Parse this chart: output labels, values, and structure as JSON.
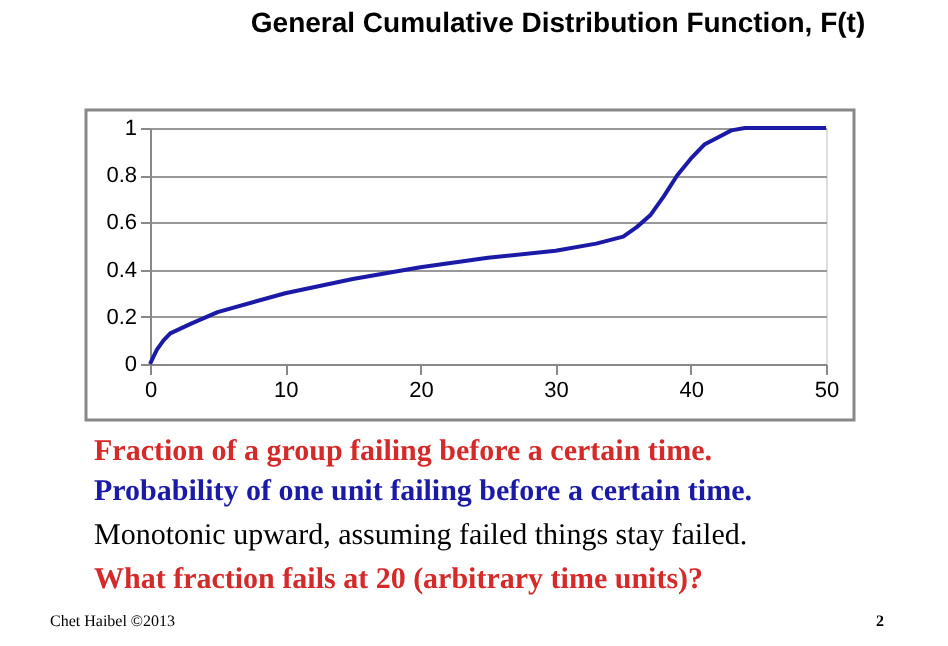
{
  "chart_data": {
    "type": "line",
    "title": "General Cumulative Distribution Function, F(t)",
    "x": [
      0,
      0.5,
      1,
      1.5,
      3,
      5,
      10,
      15,
      20,
      25,
      30,
      33,
      35,
      36,
      37,
      38,
      39,
      40,
      41,
      42,
      43,
      44,
      50
    ],
    "series": [
      {
        "color": "#1a1aa6",
        "values": [
          0,
          0.06,
          0.1,
          0.13,
          0.17,
          0.22,
          0.3,
          0.36,
          0.41,
          0.45,
          0.48,
          0.51,
          0.54,
          0.58,
          0.63,
          0.71,
          0.8,
          0.87,
          0.93,
          0.96,
          0.99,
          1.0,
          1.0
        ]
      }
    ],
    "xlim": [
      0,
      50
    ],
    "xticks": [
      0,
      10,
      20,
      30,
      40,
      50
    ],
    "ylim": [
      0,
      1
    ],
    "yticks": [
      0,
      0.2,
      0.4,
      0.6,
      0.8,
      1
    ],
    "grid": "y",
    "legend": false,
    "marker": "none",
    "line_style": "solid",
    "annotations": [
      "Fraction of a group failing before a certain time.",
      "Probability of one unit failing before a certain time.",
      "Monotonic upward, assuming failed things stay failed.",
      "What fraction fails at 20 (arbitrary time units)?",
      "Chet Haibel ©2013",
      "2"
    ]
  }
}
